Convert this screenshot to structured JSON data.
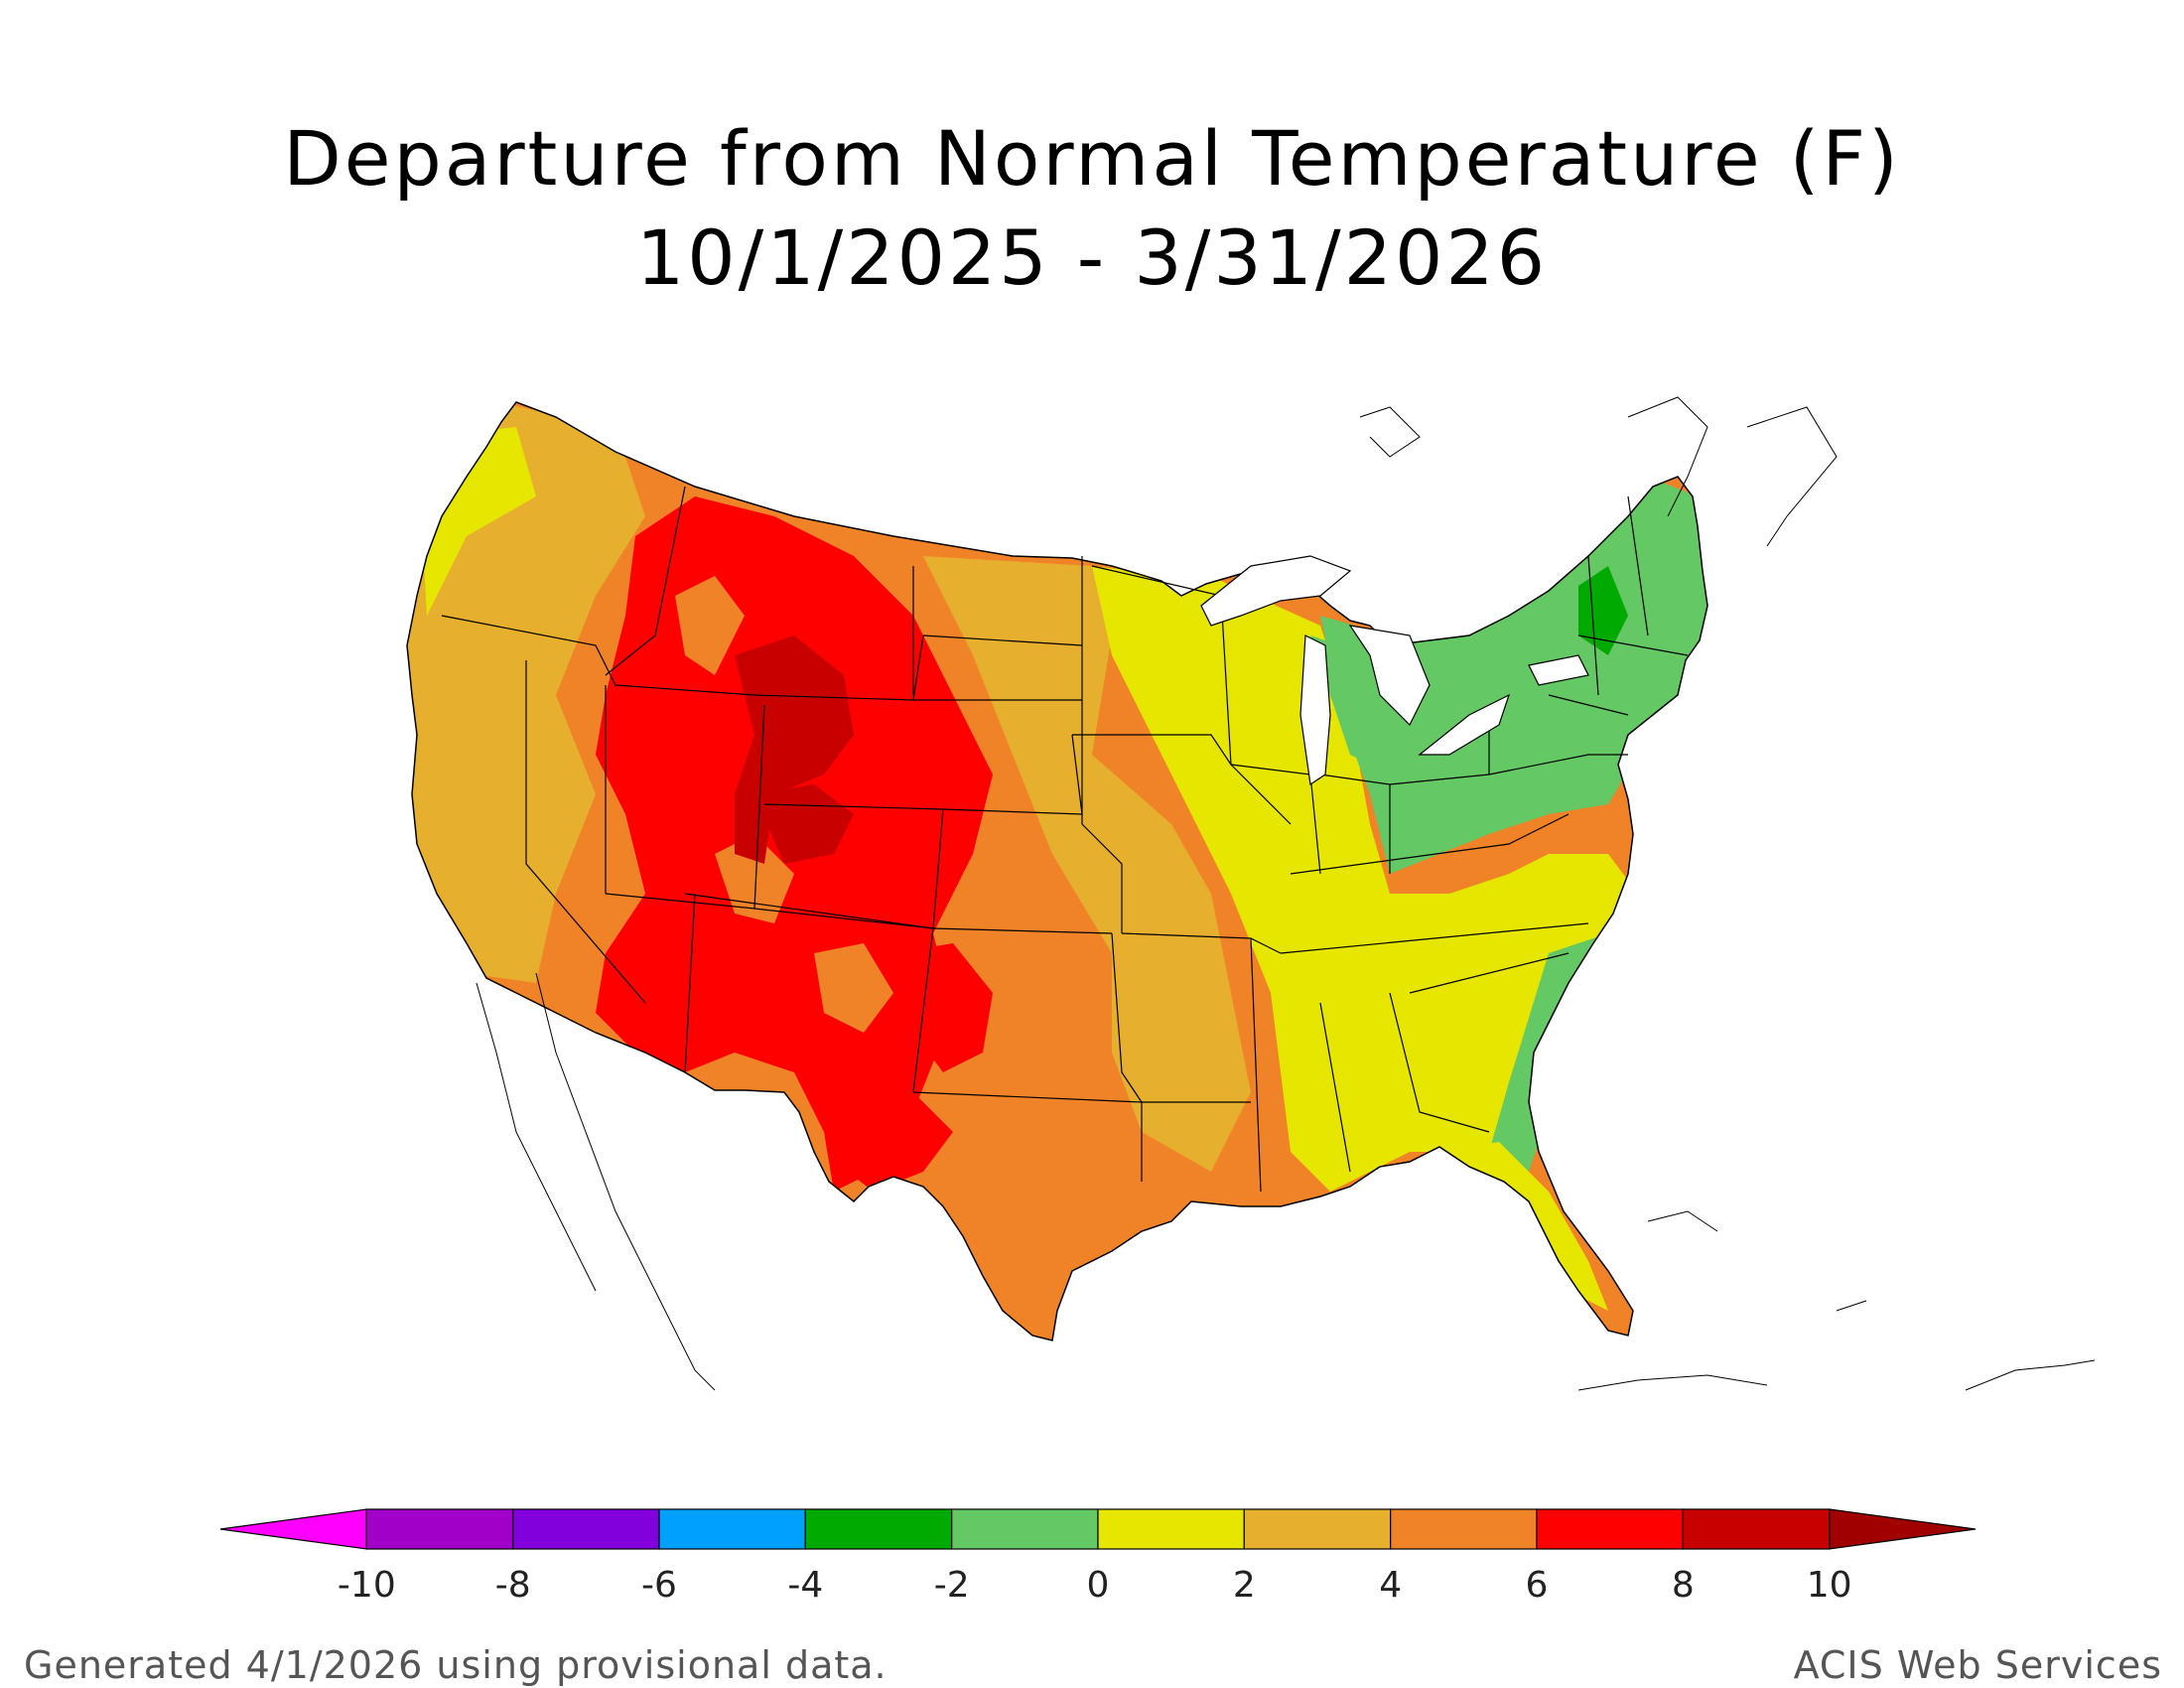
{
  "title": {
    "line1": "Departure from Normal Temperature (F)",
    "line2": "10/1/2025 - 3/31/2026"
  },
  "legend": {
    "tick_labels": [
      "-10",
      "-8",
      "-6",
      "-4",
      "-2",
      "0",
      "2",
      "4",
      "6",
      "8",
      "10"
    ],
    "colors": [
      "#ff00ff",
      "#a000c8",
      "#8200dc",
      "#00a0ff",
      "#00aa00",
      "#64c864",
      "#e6e600",
      "#e6af2d",
      "#f08228",
      "#ff0000",
      "#c80000",
      "#a00000"
    ]
  },
  "map_regions": {
    "region_colors": {
      "above_8": "#c80000",
      "6_to_8": "#ff0000",
      "4_to_6": "#f08228",
      "2_to_4": "#e6af2d",
      "0_to_2": "#e6e600",
      "minus2_to_0": "#64c864",
      "minus4_to_minus2": "#00aa00"
    }
  },
  "footer": {
    "generated": "Generated 4/1/2026 using provisional data.",
    "source": "ACIS Web Services"
  }
}
